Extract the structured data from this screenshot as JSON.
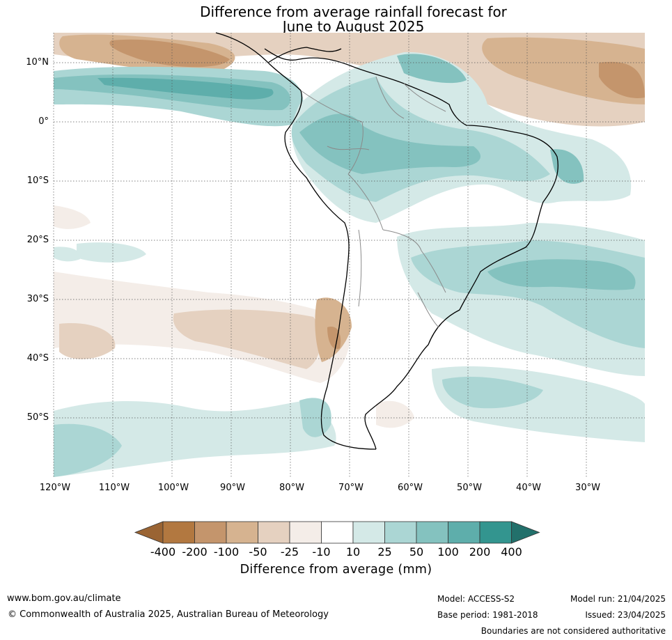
{
  "title": {
    "line1": "Difference from average rainfall forecast for",
    "line2": "June to August 2025"
  },
  "map": {
    "lat_labels": [
      "10°N",
      "0°",
      "10°S",
      "20°S",
      "30°S",
      "40°S",
      "50°S"
    ],
    "lon_labels": [
      "120°W",
      "110°W",
      "100°W",
      "90°W",
      "80°W",
      "70°W",
      "60°W",
      "50°W",
      "40°W",
      "30°W"
    ]
  },
  "colorbar": {
    "colors": [
      "#9a6433",
      "#b27840",
      "#c4956c",
      "#d6b390",
      "#e5d1c0",
      "#f4ede8",
      "#ffffff",
      "#d4e9e7",
      "#abd6d4",
      "#84c2bf",
      "#5eaeab",
      "#33958f",
      "#22706b"
    ],
    "labels": [
      "-400",
      "-200",
      "-100",
      "-50",
      "-25",
      "-10",
      "10",
      "25",
      "50",
      "100",
      "200",
      "400"
    ],
    "title": "Difference from average (mm)"
  },
  "footer": {
    "website": "www.bom.gov.au/climate",
    "copyright": "© Commonwealth of Australia 2025, Australian Bureau of Meteorology",
    "model": "Model: ACCESS-S2",
    "base_period": "Base period: 1981-2018",
    "model_run": "Model run: 21/04/2025",
    "issued": "Issued: 23/04/2025",
    "disclaimer": "Boundaries are not considered authoritative"
  }
}
